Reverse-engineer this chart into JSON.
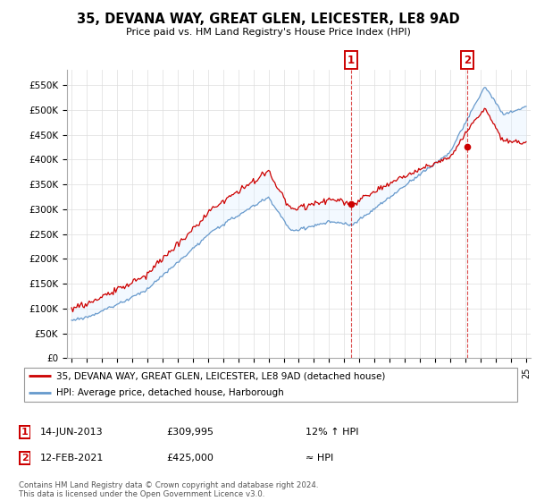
{
  "title": "35, DEVANA WAY, GREAT GLEN, LEICESTER, LE8 9AD",
  "subtitle": "Price paid vs. HM Land Registry's House Price Index (HPI)",
  "legend_line1": "35, DEVANA WAY, GREAT GLEN, LEICESTER, LE8 9AD (detached house)",
  "legend_line2": "HPI: Average price, detached house, Harborough",
  "annotation1_date": "14-JUN-2013",
  "annotation1_price": "£309,995",
  "annotation1_hpi": "12% ↑ HPI",
  "annotation2_date": "12-FEB-2021",
  "annotation2_price": "£425,000",
  "annotation2_hpi": "≈ HPI",
  "footer": "Contains HM Land Registry data © Crown copyright and database right 2024.\nThis data is licensed under the Open Government Licence v3.0.",
  "ylim": [
    0,
    580000
  ],
  "yticks": [
    0,
    50000,
    100000,
    150000,
    200000,
    250000,
    300000,
    350000,
    400000,
    450000,
    500000,
    550000
  ],
  "sale1_x": 2013.45,
  "sale1_y": 309995,
  "sale2_x": 2021.12,
  "sale2_y": 425000,
  "red_color": "#cc0000",
  "blue_color": "#6699cc",
  "fill_color": "#ddeeff",
  "grid_color": "#dddddd",
  "xtick_start": 1995,
  "xtick_end": 2025,
  "xlim_start": 1994.7,
  "xlim_end": 2025.3
}
